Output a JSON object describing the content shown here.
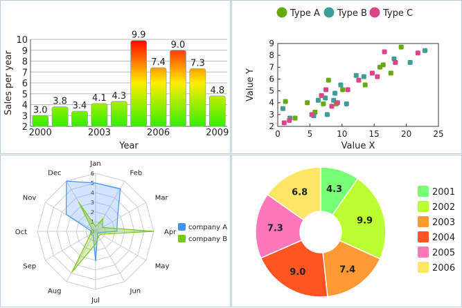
{
  "chart_data": [
    {
      "type": "bar",
      "xlabel": "Year",
      "ylabel": "Sales per year",
      "ylim": [
        2,
        10
      ],
      "y_ticks": [
        "2",
        "3",
        "4",
        "5",
        "6",
        "7",
        "8",
        "9",
        "10"
      ],
      "x_tick_labels": {
        "0": "2000",
        "3": "2003",
        "6": "2006",
        "9": "2009"
      },
      "categories": [
        "2000",
        "2001",
        "2002",
        "2003",
        "2004",
        "2005",
        "2006",
        "2007",
        "2008",
        "2009"
      ],
      "values": [
        3.0,
        3.8,
        3.4,
        4.1,
        4.3,
        9.9,
        7.4,
        9.0,
        7.3,
        4.8
      ],
      "value_labels": [
        "3.0",
        "3.8",
        "3.4",
        "4.1",
        "4.3",
        "9.9",
        "7.4",
        "9.0",
        "7.3",
        "4.8"
      ],
      "colors": {
        "low": "#33ee00",
        "mid": "#ffee00",
        "high": "#ff0000"
      }
    },
    {
      "type": "scatter",
      "xlabel": "Value X",
      "ylabel": "Value Y",
      "xlim": [
        0,
        25
      ],
      "ylim": [
        2,
        9
      ],
      "x_ticks": [
        "0",
        "5",
        "10",
        "15",
        "20",
        "25"
      ],
      "y_ticks": [
        "2",
        "3",
        "4",
        "5",
        "6",
        "7",
        "8",
        "9"
      ],
      "legend_position": "top",
      "series": [
        {
          "name": "Type A",
          "color": "#66aa11",
          "points": [
            [
              1.2,
              4.1
            ],
            [
              2.7,
              2.7
            ],
            [
              4.6,
              4.0
            ],
            [
              5.8,
              3.2
            ],
            [
              7.1,
              3.9
            ],
            [
              7.9,
              5.9
            ],
            [
              9.1,
              3.9
            ],
            [
              10.1,
              5.1
            ],
            [
              13.6,
              5.5
            ],
            [
              15.9,
              7.0
            ],
            [
              16.4,
              7.2
            ],
            [
              17.6,
              6.5
            ],
            [
              19.2,
              8.7
            ]
          ]
        },
        {
          "name": "Type B",
          "color": "#3d9e95",
          "points": [
            [
              0.8,
              3.5
            ],
            [
              1.9,
              2.7
            ],
            [
              5.6,
              2.9
            ],
            [
              6.3,
              4.2
            ],
            [
              7.4,
              4.4
            ],
            [
              7.7,
              3.0
            ],
            [
              8.7,
              4.2
            ],
            [
              8.9,
              4.8
            ],
            [
              9.8,
              5.5
            ],
            [
              10.7,
              3.9
            ],
            [
              12.2,
              6.3
            ],
            [
              13.4,
              6.2
            ],
            [
              18.1,
              7.7
            ],
            [
              20.6,
              7.4
            ],
            [
              22.9,
              8.4
            ]
          ]
        },
        {
          "name": "Type C",
          "color": "#dd4488",
          "points": [
            [
              1.0,
              2.3
            ],
            [
              1.8,
              2.5
            ],
            [
              5.3,
              3.0
            ],
            [
              6.8,
              4.6
            ],
            [
              7.5,
              5.1
            ],
            [
              8.4,
              3.7
            ],
            [
              9.3,
              4.0
            ],
            [
              10.9,
              5.1
            ],
            [
              12.6,
              5.9
            ],
            [
              14.7,
              6.5
            ],
            [
              15.5,
              6.2
            ],
            [
              16.6,
              8.3
            ],
            [
              18.3,
              7.4
            ],
            [
              21.8,
              8.2
            ]
          ]
        }
      ]
    },
    {
      "type": "radar",
      "axes": [
        "Jan",
        "Feb",
        "Mar",
        "Apr",
        "May",
        "Jun",
        "Jul",
        "Aug",
        "Sep",
        "Oct",
        "Nov",
        "Dec"
      ],
      "rmax": 6,
      "r_ticks": [
        "0",
        "1",
        "2",
        "3",
        "4",
        "5",
        "6"
      ],
      "legend_position": "right",
      "series": [
        {
          "name": "company A",
          "color": "#3f94ff",
          "fill": "rgba(110,165,255,0.3)",
          "values": [
            5,
            5.1,
            2.6,
            2.2,
            0.3,
            0.4,
            3.1,
            0.5,
            0.6,
            0.4,
            3.5,
            6.0
          ]
        },
        {
          "name": "company B",
          "color": "#77c91c",
          "fill": "rgba(150,210,60,0.35)",
          "values": [
            0.5,
            1.5,
            0.8,
            6.0,
            0.6,
            0.6,
            1.3,
            4.9,
            0.6,
            0.5,
            0.4,
            3.5
          ]
        }
      ]
    },
    {
      "type": "pie",
      "donut": true,
      "legend_position": "right",
      "categories": [
        "2001",
        "2002",
        "2003",
        "2004",
        "2005",
        "2006"
      ],
      "values": [
        4.3,
        9.9,
        7.4,
        9.0,
        7.3,
        6.8
      ],
      "labels": [
        "4.3",
        "9.9",
        "7.4",
        "9.0",
        "7.3",
        "6.8"
      ],
      "colors": [
        "#77ff77",
        "#bbff33",
        "#ff9933",
        "#ff5522",
        "#ff77bb",
        "#ffe666"
      ]
    }
  ]
}
